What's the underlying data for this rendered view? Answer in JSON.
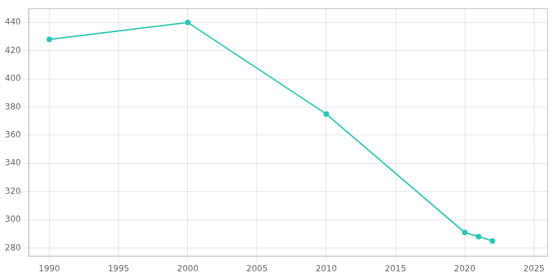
{
  "chart_data": {
    "type": "line",
    "x": [
      1990,
      2000,
      2010,
      2020,
      2021,
      2022
    ],
    "values": [
      428,
      440,
      375,
      291,
      288,
      285
    ],
    "color": "#2EC4B6",
    "marker": "circle",
    "xlim": [
      1988.5,
      2026
    ],
    "ylim": [
      274,
      450
    ],
    "xticks": [
      1990,
      1995,
      2000,
      2005,
      2010,
      2015,
      2020,
      2025
    ],
    "yticks": [
      280,
      300,
      320,
      340,
      360,
      380,
      400,
      420,
      440
    ],
    "grid": true
  }
}
